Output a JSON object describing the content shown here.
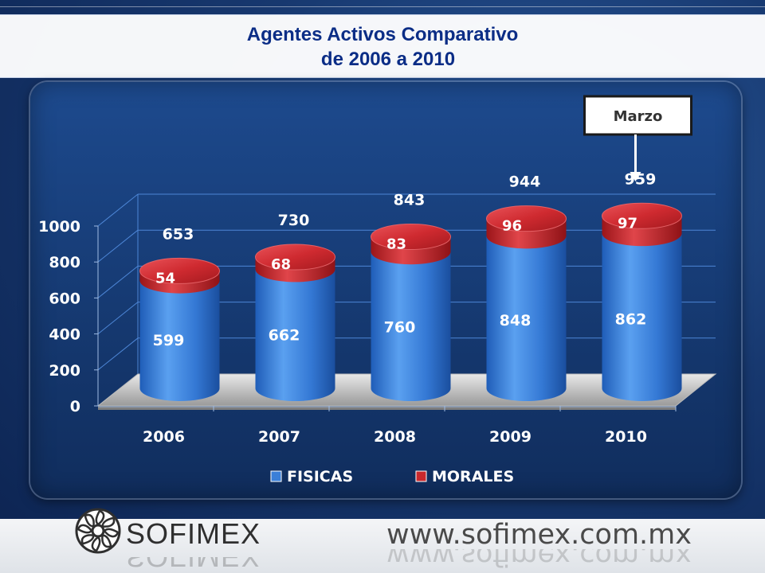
{
  "title": {
    "line1": "Agentes Activos Comparativo",
    "line2": "de 2006 a 2010"
  },
  "chart_data": {
    "type": "bar",
    "stacked": true,
    "categories": [
      "2006",
      "2007",
      "2008",
      "2009",
      "2010"
    ],
    "series": [
      {
        "name": "FISICAS",
        "values": [
          599,
          662,
          760,
          848,
          862
        ],
        "color": "#3a7fd8"
      },
      {
        "name": "MORALES",
        "values": [
          54,
          68,
          83,
          96,
          97
        ],
        "color": "#c8282d"
      }
    ],
    "totals": [
      653,
      730,
      843,
      944,
      959
    ],
    "y_ticks": [
      "0",
      "200",
      "400",
      "600",
      "800",
      "1000"
    ],
    "ylim": [
      0,
      1000
    ],
    "grid": true,
    "legend_position": "bottom",
    "annotation": {
      "text": "Marzo",
      "category": "2010"
    }
  },
  "footer": {
    "logo_text": "SOFIMEX",
    "website": "www.sofimex.com.mx"
  },
  "colors": {
    "title_text": "#0b2d86",
    "fisicas": "#3a7fd8",
    "morales": "#c8282d",
    "background": "#17386f"
  },
  "icons": {
    "logo": "sofimex-logo-icon",
    "legend_fisicas": "blue-square-icon",
    "legend_morales": "red-square-icon",
    "annotation_arrow": "arrow-down-icon"
  }
}
